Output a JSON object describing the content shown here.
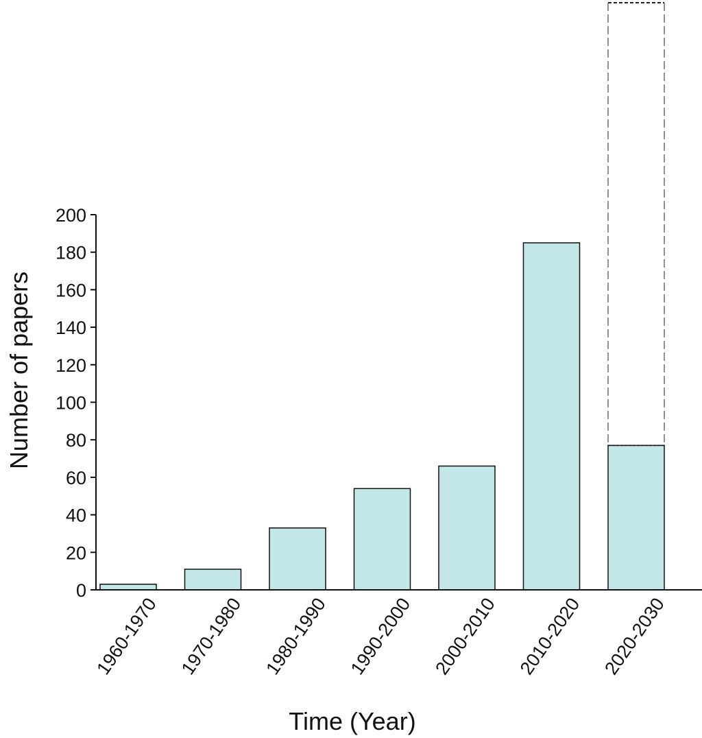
{
  "chart_data": {
    "type": "bar",
    "title": "",
    "xlabel": "Time (Year)",
    "ylabel": "Number of papers",
    "ylim": [
      0,
      200
    ],
    "yticks": [
      "0",
      "20",
      "40",
      "60",
      "80",
      "100",
      "120",
      "140",
      "160",
      "180",
      "200"
    ],
    "categories": [
      "1960-1970",
      "1970-1980",
      "1980-1990",
      "1990-2000",
      "2000-2010",
      "2010-2020",
      "2020-2030"
    ],
    "values": [
      3,
      11,
      33,
      54,
      66,
      185,
      77
    ],
    "projected": {
      "category": "2020-2030",
      "value": 313,
      "style": "dashed outline"
    },
    "bar_color": "#c4e6e7",
    "bar_edge_color": "#111111",
    "grid": false
  }
}
